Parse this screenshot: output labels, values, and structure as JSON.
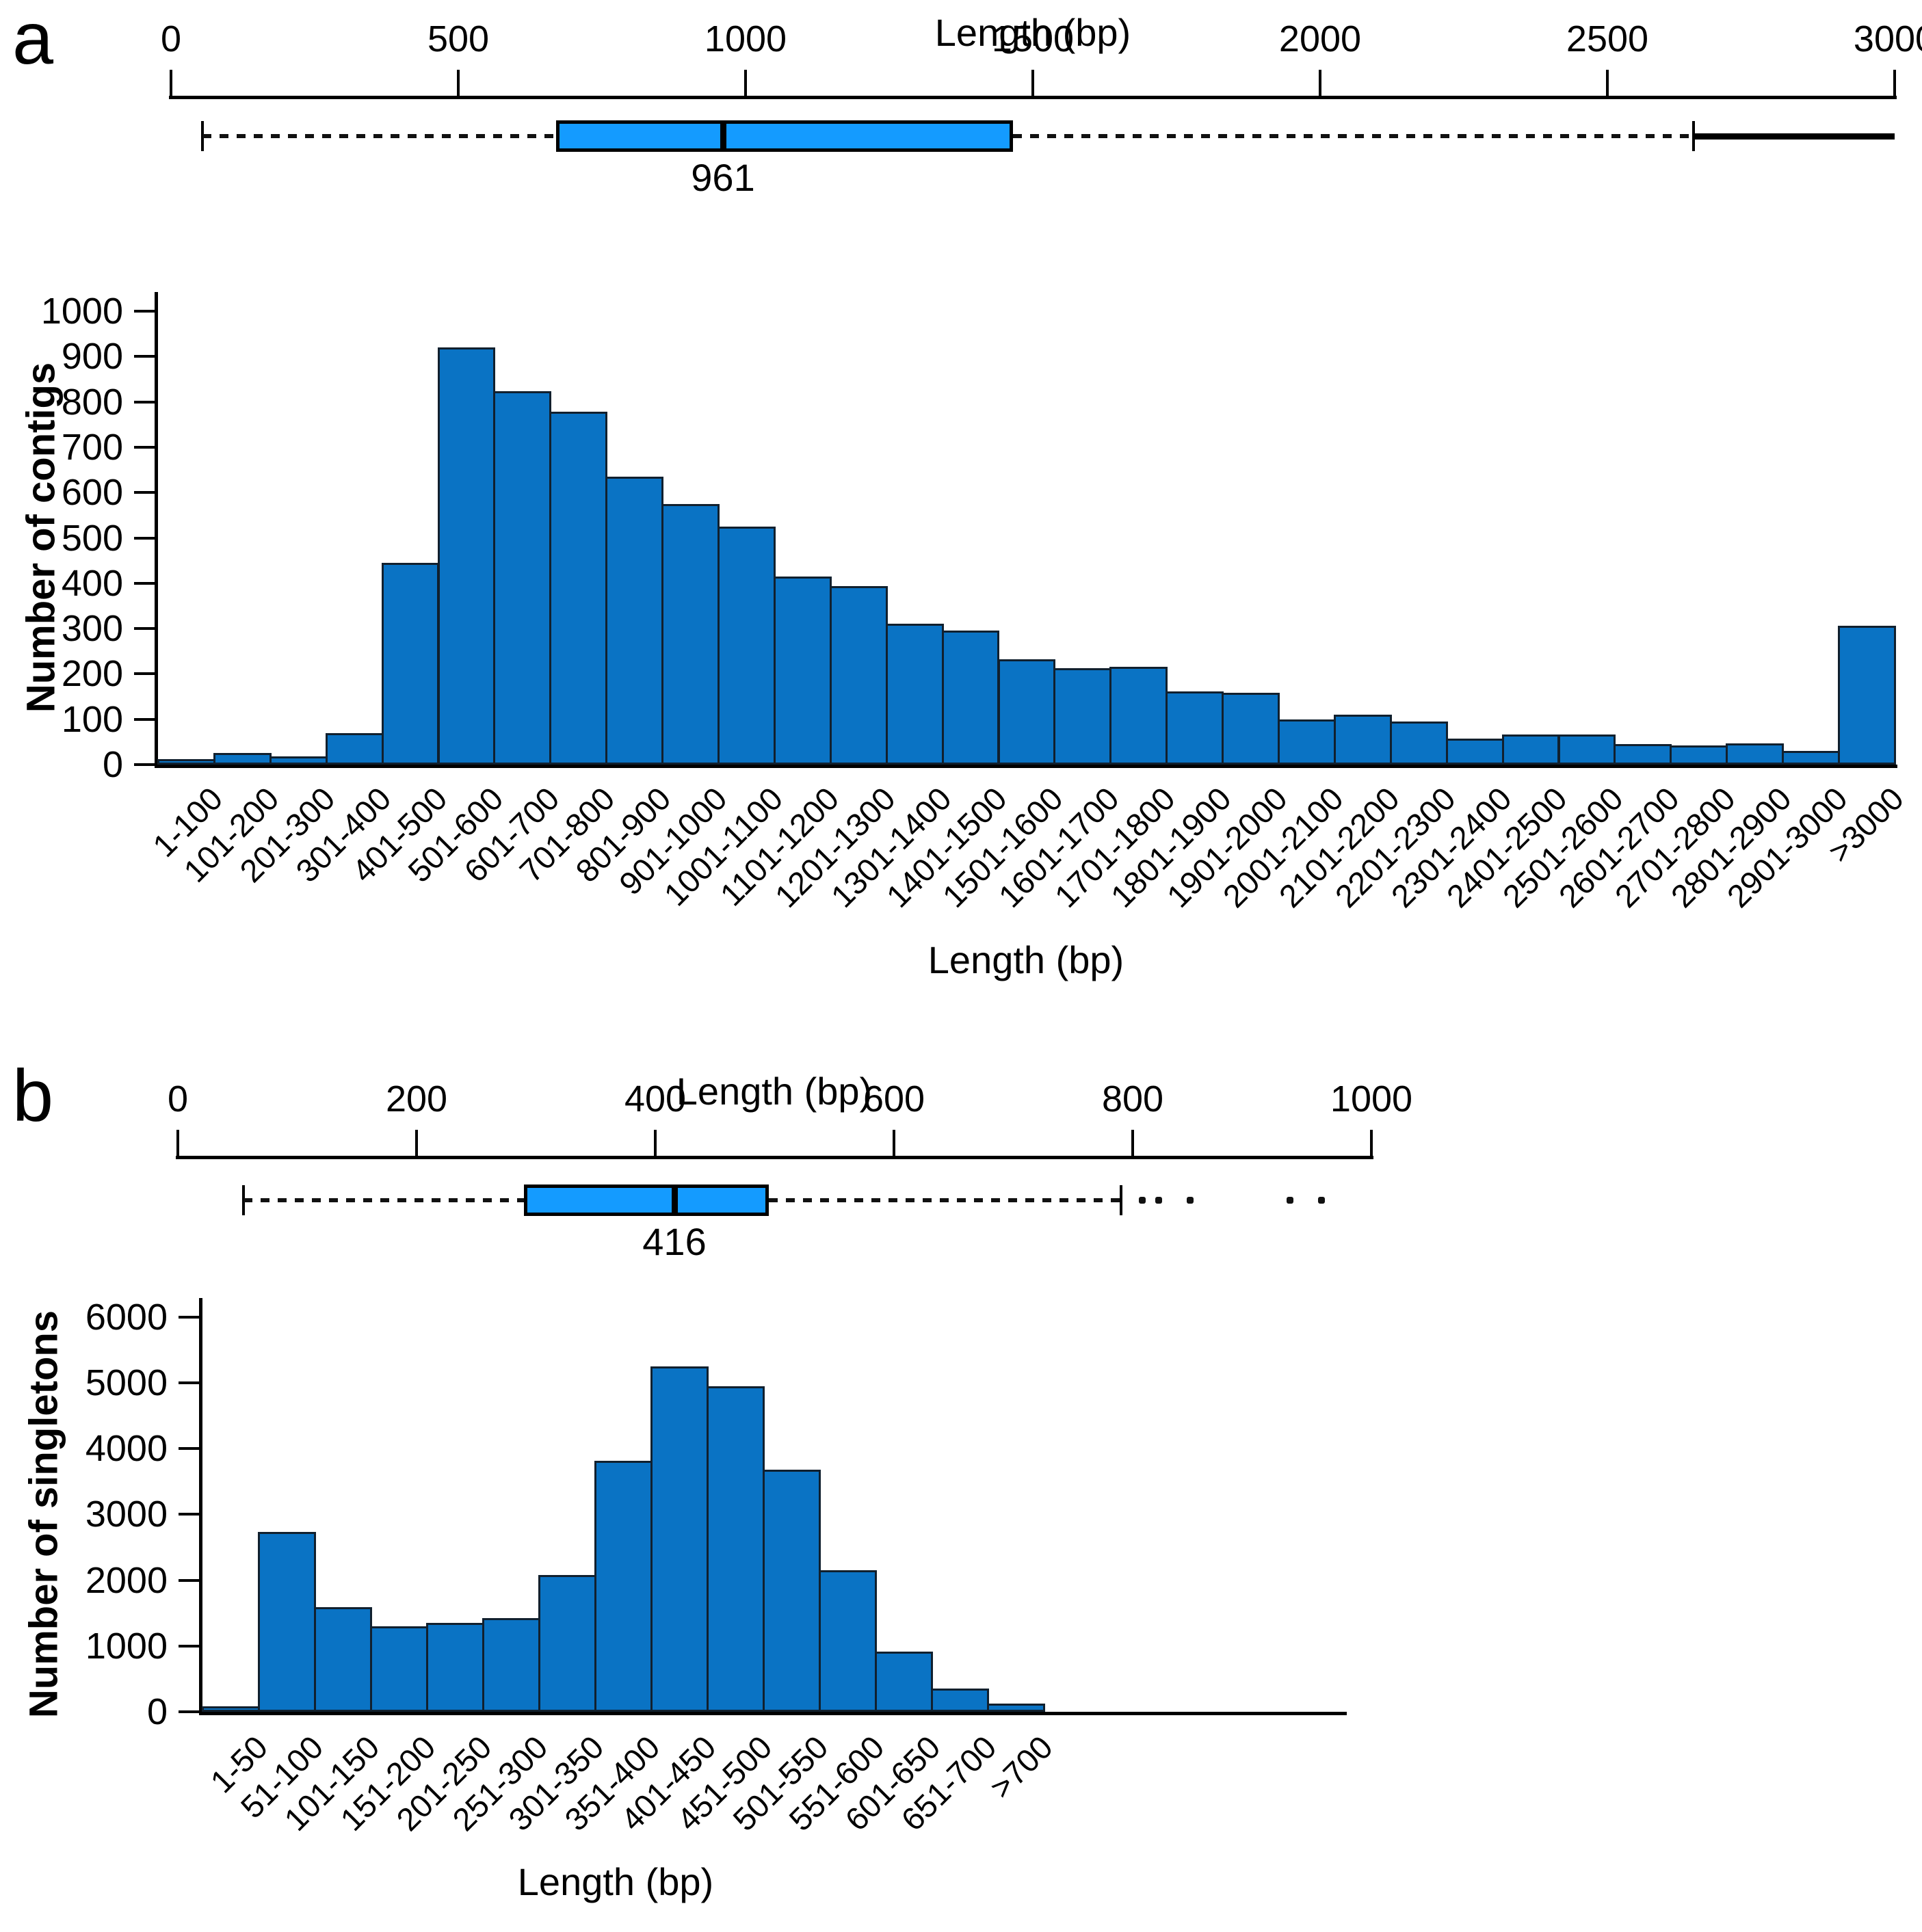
{
  "chart_data": [
    {
      "id": "a",
      "type": "bar",
      "panel_label": "a",
      "top_axis": {
        "title": "Length (bp)",
        "min": 0,
        "max": 3000,
        "ticks": [
          0,
          500,
          1000,
          1500,
          2000,
          2500,
          3000
        ]
      },
      "boxplot": {
        "whisker_low": 55,
        "q1": 670,
        "median": 961,
        "q3": 1465,
        "whisker_high": 2650,
        "solid_tail_start": 2650,
        "solid_tail_end": 3000,
        "median_label": "961",
        "outliers": []
      },
      "histogram": {
        "title": "",
        "ylabel": "Number of contigs",
        "xlabel": "Length (bp)",
        "ylim": [
          0,
          1000
        ],
        "yticks": [
          0,
          100,
          200,
          300,
          400,
          500,
          600,
          700,
          800,
          900,
          1000
        ],
        "grid": false,
        "legend": "none",
        "categories": [
          "1-100",
          "101-200",
          "201-300",
          "301-400",
          "401-500",
          "501-600",
          "601-700",
          "701-800",
          "801-900",
          "901-1000",
          "1001-1100",
          "1101-1200",
          "1201-1300",
          "1301-1400",
          "1401-1500",
          "1501-1600",
          "1601-1700",
          "1701-1800",
          "1801-1900",
          "1901-2000",
          "2001-2100",
          "2101-2200",
          "2201-2300",
          "2301-2400",
          "2401-2500",
          "2501-2600",
          "2601-2700",
          "2701-2800",
          "2801-2900",
          "2901-3000",
          ">3000"
        ],
        "values": [
          12,
          25,
          18,
          70,
          445,
          920,
          823,
          778,
          635,
          575,
          525,
          415,
          393,
          310,
          295,
          232,
          212,
          215,
          162,
          158,
          100,
          110,
          95,
          57,
          67,
          66,
          46,
          42,
          47,
          30,
          306
        ]
      }
    },
    {
      "id": "b",
      "type": "bar",
      "panel_label": "b",
      "top_axis": {
        "title": "Length (bp)",
        "min": 0,
        "max": 1000,
        "ticks": [
          0,
          200,
          400,
          600,
          800,
          1000
        ]
      },
      "boxplot": {
        "whisker_low": 55,
        "q1": 290,
        "median": 416,
        "q3": 495,
        "whisker_high": 790,
        "median_label": "416",
        "outliers": [
          808,
          822,
          848,
          932,
          958
        ]
      },
      "histogram": {
        "title": "",
        "ylabel": "Number of singletons",
        "xlabel": "Length (bp)",
        "ylim": [
          0,
          6000
        ],
        "yticks": [
          0,
          1000,
          2000,
          3000,
          4000,
          5000,
          6000
        ],
        "grid": false,
        "legend": "none",
        "categories": [
          "1-50",
          "51-100",
          "101-150",
          "151-200",
          "201-250",
          "251-300",
          "301-350",
          "351-400",
          "401-450",
          "451-500",
          "501-550",
          "551-600",
          "601-650",
          "651-700",
          ">700"
        ],
        "values": [
          80,
          2730,
          1590,
          1300,
          1350,
          1420,
          2080,
          3820,
          5250,
          4950,
          3680,
          2150,
          920,
          350,
          120
        ]
      }
    }
  ],
  "colors": {
    "bar_fill": "#0a73c4",
    "bar_border": "#11202e",
    "box_fill": "#149bff",
    "axis": "#000000",
    "background": "#ffffff"
  }
}
